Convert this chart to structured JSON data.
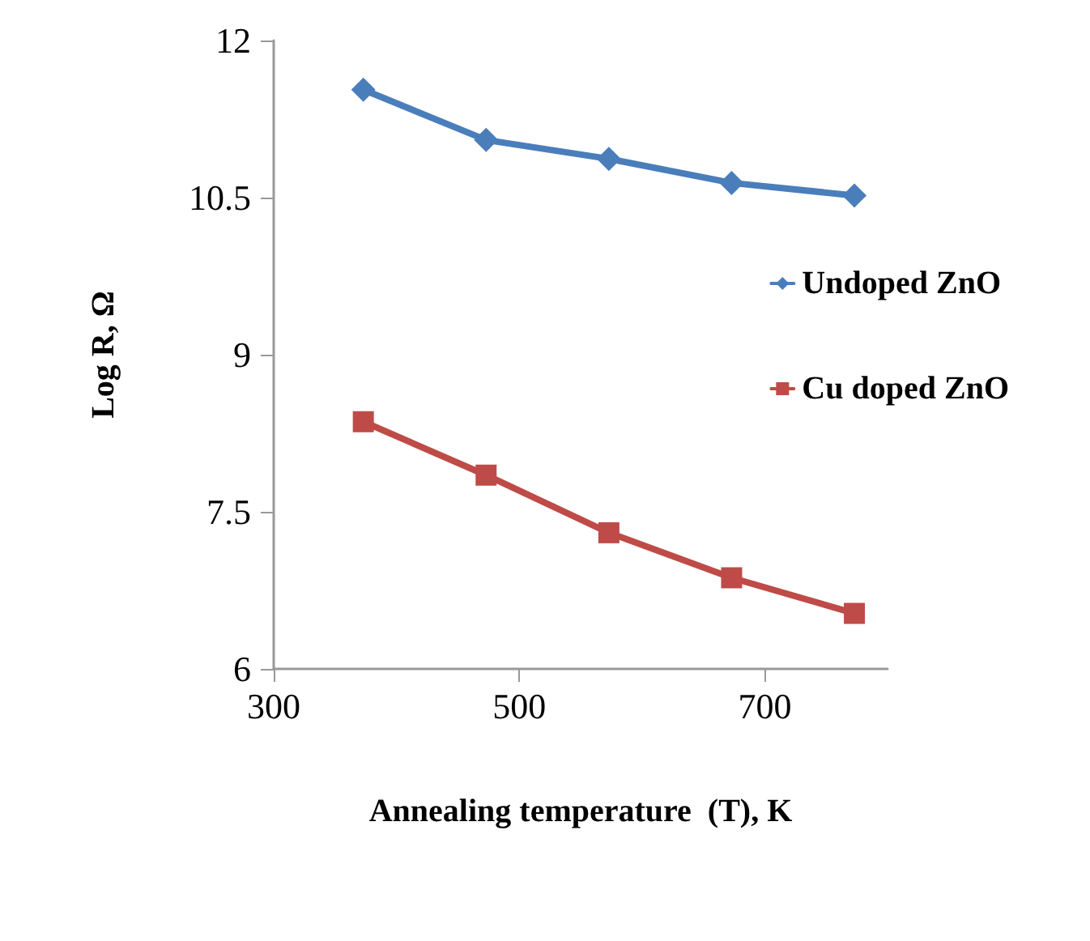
{
  "chart_data": {
    "type": "line",
    "xlabel": "Annealing temperature  (T), K",
    "ylabel": "Log R, Ω",
    "x": [
      373,
      473,
      573,
      673,
      773
    ],
    "series": [
      {
        "name": "Undoped ZnO",
        "color": "#4a7ebb",
        "values": [
          11.53,
          11.05,
          10.87,
          10.64,
          10.52
        ],
        "marker": "diamond"
      },
      {
        "name": "Cu doped ZnO",
        "color": "#be4b48",
        "values": [
          8.36,
          7.85,
          7.3,
          6.87,
          6.53
        ],
        "marker": "square"
      }
    ],
    "xlim": [
      300,
      800
    ],
    "xticks": [
      300,
      500,
      700
    ],
    "ylim": [
      6,
      12
    ],
    "yticks": [
      6,
      7.5,
      9,
      10.5,
      12
    ],
    "grid": false,
    "legend": "right",
    "line_style": "solid"
  }
}
